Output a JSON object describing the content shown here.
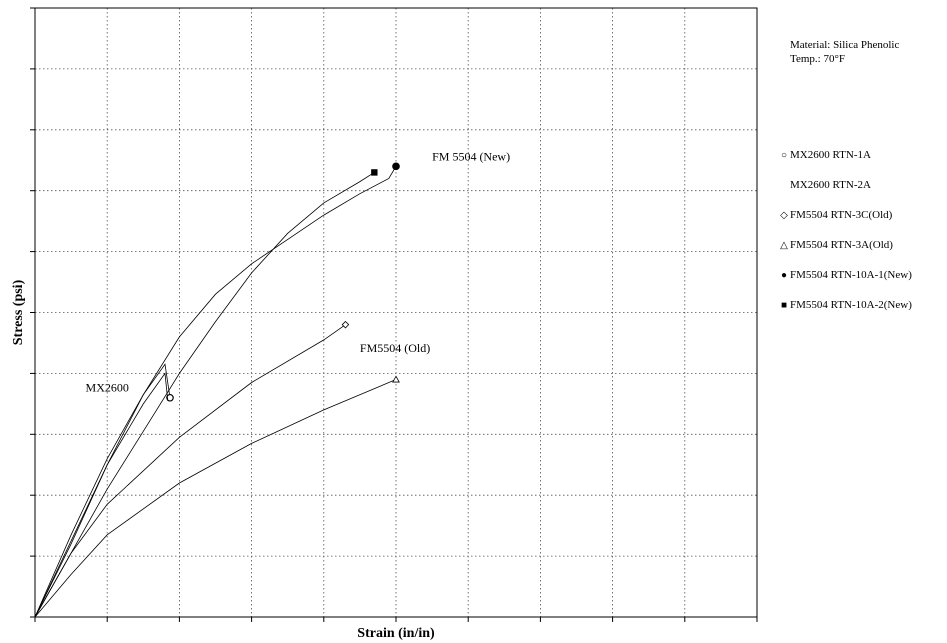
{
  "notes": {
    "material": "Material: Silica Phenolic",
    "temp": "Temp.: 70°F"
  },
  "chart_data": {
    "type": "line",
    "title": "",
    "xlabel": "Strain (in/in)",
    "ylabel": "Stress (psi)",
    "xlim": [
      0,
      10
    ],
    "ylim": [
      0,
      10
    ],
    "grid": true,
    "x_ticks": 10,
    "y_ticks": 10,
    "legend_position": "right",
    "series": [
      {
        "name": "MX2600 RTN-1A",
        "marker": "circle-open",
        "x": [
          0,
          0.5,
          1.0,
          1.5,
          1.8,
          1.87
        ],
        "y": [
          0,
          1.35,
          2.6,
          3.65,
          4.15,
          3.6
        ],
        "end_marker": [
          1.87,
          3.6
        ]
      },
      {
        "name": "MX2600 RTN-2A",
        "marker": "none",
        "x": [
          0,
          0.5,
          1.0,
          1.5,
          1.8,
          1.84
        ],
        "y": [
          0,
          1.25,
          2.5,
          3.5,
          4.0,
          3.55
        ],
        "end_marker": null
      },
      {
        "name": "FM5504 RTN-3C(Old)",
        "marker": "diamond-open",
        "x": [
          0,
          0.5,
          1.0,
          2.0,
          3.0,
          4.0,
          4.3
        ],
        "y": [
          0,
          1.05,
          1.85,
          2.95,
          3.85,
          4.55,
          4.8
        ],
        "end_marker": [
          4.3,
          4.8
        ]
      },
      {
        "name": "FM5504 RTN-3A(Old)",
        "marker": "triangle-open",
        "x": [
          0,
          0.5,
          1.0,
          2.0,
          3.0,
          4.0,
          5.0
        ],
        "y": [
          0,
          0.7,
          1.35,
          2.2,
          2.85,
          3.4,
          3.9
        ],
        "end_marker": [
          5.0,
          3.9
        ]
      },
      {
        "name": "FM5504 RTN-10A-1(New)",
        "marker": "circle-filled",
        "x": [
          0,
          0.5,
          1.0,
          1.5,
          2.0,
          2.5,
          3.0,
          3.5,
          4.0,
          4.5,
          4.9,
          5.0
        ],
        "y": [
          0,
          1.2,
          2.5,
          3.65,
          4.6,
          5.3,
          5.8,
          6.2,
          6.6,
          6.95,
          7.2,
          7.4
        ],
        "end_marker": [
          5.0,
          7.4
        ]
      },
      {
        "name": "FM5504 RTN-10A-2(New)",
        "marker": "square-filled",
        "x": [
          0,
          0.5,
          1.0,
          1.5,
          2.0,
          2.5,
          3.0,
          3.5,
          4.0,
          4.5,
          4.7
        ],
        "y": [
          0,
          1.05,
          2.1,
          3.05,
          4.0,
          4.85,
          5.65,
          6.3,
          6.8,
          7.15,
          7.3
        ],
        "end_marker": [
          4.7,
          7.3
        ]
      }
    ],
    "annotations": [
      {
        "text": "MX2600",
        "x": 0.7,
        "y": 3.7
      },
      {
        "text": "FM5504 (Old)",
        "x": 4.5,
        "y": 4.35
      },
      {
        "text": "FM 5504 (New)",
        "x": 5.5,
        "y": 7.5
      }
    ]
  }
}
